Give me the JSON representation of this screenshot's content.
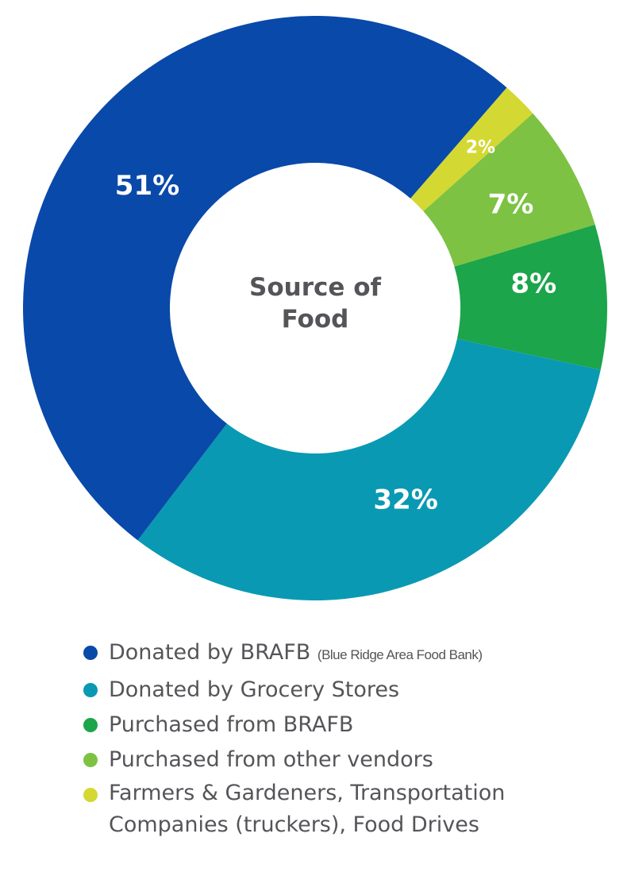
{
  "chart_data": {
    "type": "pie",
    "variant": "donut",
    "center_title": "Source of Food",
    "start_angle_deg_clockwise_from_top": 41,
    "slices": [
      {
        "label": "Farmers & Gardeners, Transportation Companies (truckers), Food Drives",
        "value": 2,
        "display": "2%",
        "color": "#d4d832"
      },
      {
        "label": "Purchased from other vendors",
        "value": 7,
        "display": "7%",
        "color": "#7dc243"
      },
      {
        "label": "Purchased from BRAFB",
        "value": 8,
        "display": "8%",
        "color": "#1ca54a"
      },
      {
        "label": "Donated by Grocery Stores",
        "value": 32,
        "display": "32%",
        "color": "#0a99b3"
      },
      {
        "label": "Donated by BRAFB",
        "value": 51,
        "display": "51%",
        "color": "#0949a9"
      }
    ],
    "legend_position": "bottom"
  },
  "legend": [
    {
      "label": "Donated by BRAFB",
      "note": "(Blue Ridge Area Food Bank)",
      "color": "#0949a9"
    },
    {
      "label": "Donated by Grocery Stores",
      "note": "",
      "color": "#0a99b3"
    },
    {
      "label": "Purchased from BRAFB",
      "note": "",
      "color": "#1ca54a"
    },
    {
      "label": "Purchased from other vendors",
      "note": "",
      "color": "#7dc243"
    },
    {
      "label": "Farmers & Gardeners, Transportation\nCompanies (truckers), Food Drives",
      "note": "",
      "color": "#d4d832"
    }
  ]
}
